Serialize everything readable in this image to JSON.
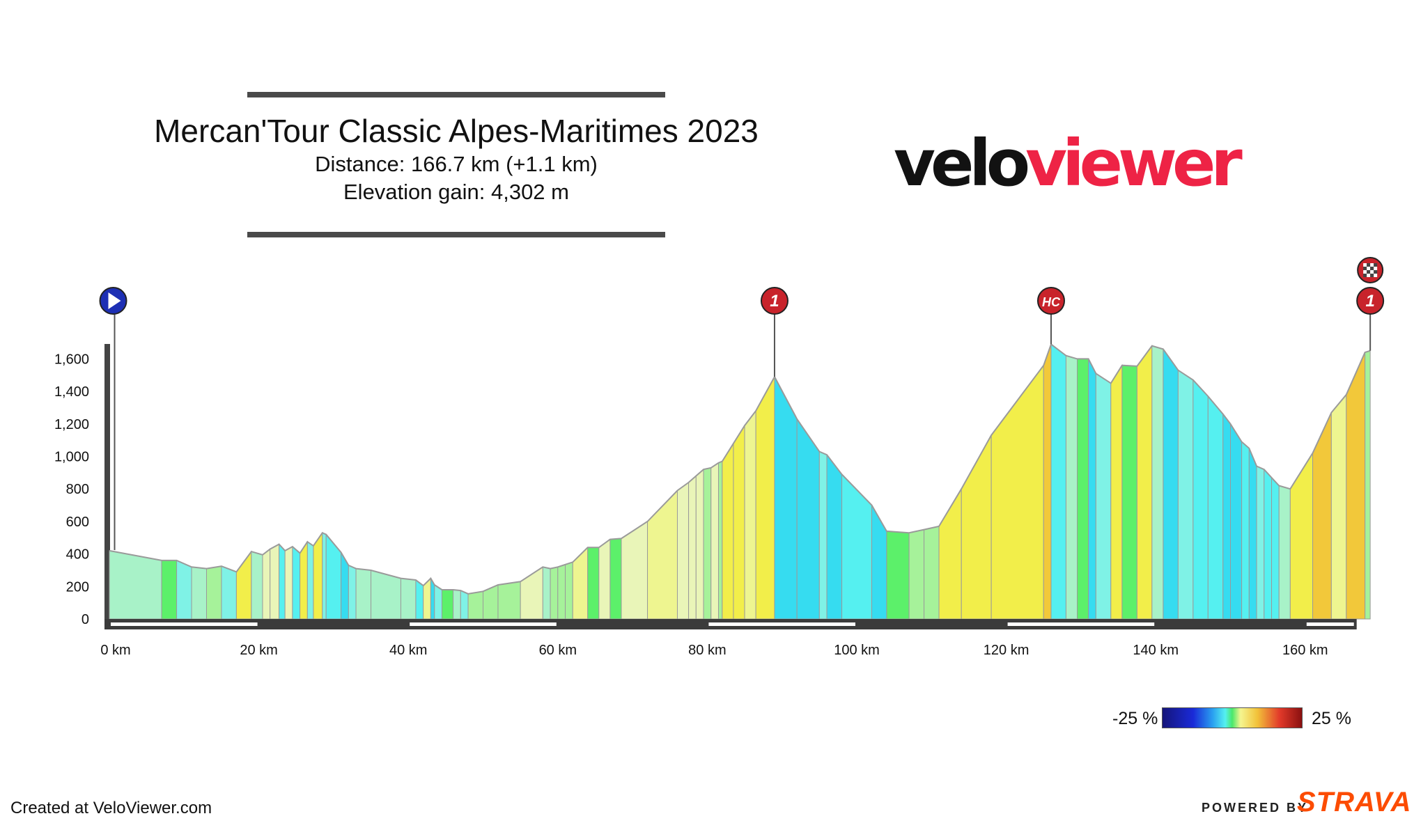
{
  "chart_data": {
    "type": "area",
    "title": "Mercan'Tour Classic Alpes-Maritimes 2023",
    "subtitle_lines": [
      "Distance: 166.7 km (+1.1 km)",
      "Elevation gain: 4,302 m"
    ],
    "x_unit": "km",
    "y_unit": "m",
    "xlim": [
      0,
      166.7
    ],
    "ylim": [
      0,
      1700
    ],
    "x_ticks": [
      0,
      20,
      40,
      60,
      80,
      100,
      120,
      140,
      160
    ],
    "x_tick_labels": [
      "0 km",
      "20 km",
      "40 km",
      "60 km",
      "80 km",
      "100 km",
      "120 km",
      "140 km",
      "160 km"
    ],
    "y_ticks": [
      0,
      200,
      400,
      600,
      800,
      1000,
      1200,
      1400,
      1600
    ],
    "y_tick_labels": [
      "0",
      "200",
      "400",
      "600",
      "800",
      "1,000",
      "1,200",
      "1,400",
      "1,600"
    ],
    "gradient_legend": {
      "min_label": "-25 %",
      "max_label": "25 %"
    },
    "profile": [
      [
        0,
        420
      ],
      [
        7,
        360
      ],
      [
        9,
        360
      ],
      [
        11,
        320
      ],
      [
        13,
        310
      ],
      [
        15,
        325
      ],
      [
        17,
        290
      ],
      [
        19,
        415
      ],
      [
        20.5,
        395
      ],
      [
        21.5,
        430
      ],
      [
        22.7,
        460
      ],
      [
        23.5,
        420
      ],
      [
        24.5,
        445
      ],
      [
        25.5,
        405
      ],
      [
        26.5,
        475
      ],
      [
        27.3,
        450
      ],
      [
        28.5,
        530
      ],
      [
        29,
        520
      ],
      [
        31,
        410
      ],
      [
        32,
        330
      ],
      [
        33,
        310
      ],
      [
        35,
        300
      ],
      [
        39,
        250
      ],
      [
        41,
        240
      ],
      [
        42,
        205
      ],
      [
        43,
        250
      ],
      [
        43.5,
        210
      ],
      [
        44.5,
        180
      ],
      [
        46,
        180
      ],
      [
        47,
        175
      ],
      [
        48,
        155
      ],
      [
        50,
        170
      ],
      [
        52,
        210
      ],
      [
        55,
        230
      ],
      [
        58,
        320
      ],
      [
        59,
        310
      ],
      [
        60,
        320
      ],
      [
        61,
        335
      ],
      [
        62,
        350
      ],
      [
        64,
        440
      ],
      [
        65.5,
        440
      ],
      [
        67,
        490
      ],
      [
        68.5,
        495
      ],
      [
        72,
        600
      ],
      [
        76,
        790
      ],
      [
        77.5,
        840
      ],
      [
        78.5,
        880
      ],
      [
        79.5,
        920
      ],
      [
        80.5,
        930
      ],
      [
        81.5,
        960
      ],
      [
        82,
        970
      ],
      [
        83.5,
        1080
      ],
      [
        85,
        1190
      ],
      [
        86.5,
        1280
      ],
      [
        89,
        1490
      ],
      [
        92,
        1230
      ],
      [
        95,
        1030
      ],
      [
        96,
        1010
      ],
      [
        98,
        890
      ],
      [
        102,
        700
      ],
      [
        104,
        540
      ],
      [
        107,
        530
      ],
      [
        109,
        550
      ],
      [
        111,
        570
      ],
      [
        114,
        800
      ],
      [
        118,
        1130
      ],
      [
        125,
        1560
      ],
      [
        126,
        1690
      ],
      [
        128,
        1620
      ],
      [
        129.5,
        1600
      ],
      [
        131,
        1600
      ],
      [
        132,
        1510
      ],
      [
        134,
        1450
      ],
      [
        135.5,
        1560
      ],
      [
        137.5,
        1555
      ],
      [
        139.5,
        1680
      ],
      [
        141,
        1660
      ],
      [
        143,
        1530
      ],
      [
        145,
        1470
      ],
      [
        147,
        1370
      ],
      [
        149,
        1260
      ],
      [
        150,
        1200
      ],
      [
        151.5,
        1090
      ],
      [
        152.5,
        1050
      ],
      [
        153.5,
        940
      ],
      [
        154.5,
        920
      ],
      [
        155.5,
        870
      ],
      [
        156.5,
        820
      ],
      [
        158,
        800
      ],
      [
        161,
        1020
      ],
      [
        163.5,
        1270
      ],
      [
        165.5,
        1380
      ],
      [
        168,
        1640
      ],
      [
        168.7,
        1650
      ]
    ],
    "climbs": [
      {
        "km": 89.0,
        "label": "1"
      },
      {
        "km": 126.0,
        "label": "HC"
      },
      {
        "km": 168.7,
        "label": "1"
      }
    ],
    "start_km": 0.7,
    "finish_km": 168.7
  },
  "brand": {
    "part1": "velo",
    "part2": "viewer"
  },
  "footer": {
    "created": "Created at VeloViewer.com",
    "powered_by": "POWERED BY",
    "strava": "STRAVA"
  },
  "colors": {
    "axis_bar": "#3b3b3b",
    "profile_line": "#9a9a9a",
    "climb_marker": "#c8232b",
    "start_marker": "#1d2fb4"
  }
}
